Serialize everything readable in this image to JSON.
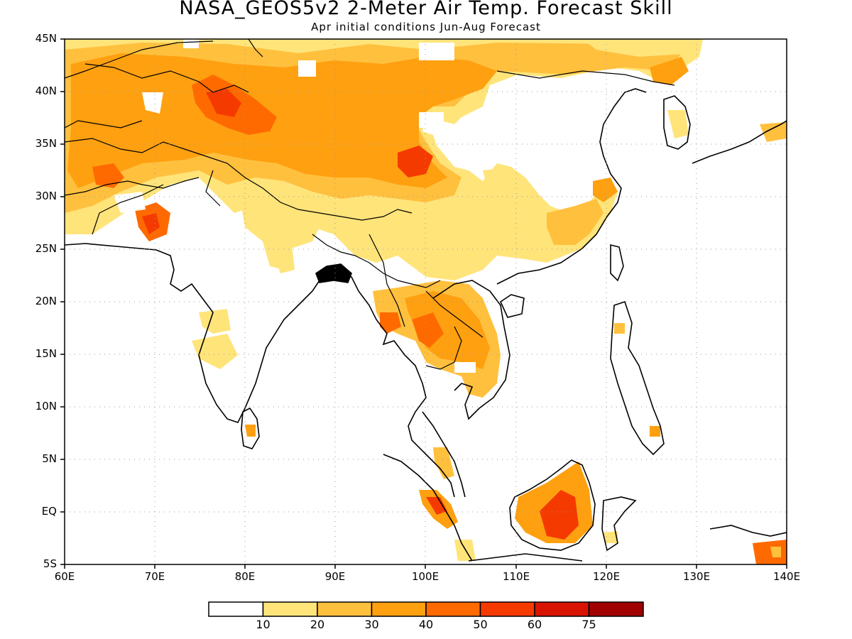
{
  "title": "NASA_GEOS5v2 2-Meter Air Temp. Forecast Skill",
  "subtitle": "Apr initial conditions  Jun-Aug Forecast",
  "map": {
    "lon_range": [
      60,
      140
    ],
    "lat_range": [
      -5,
      45
    ],
    "lat_labels": [
      "45N",
      "40N",
      "35N",
      "30N",
      "25N",
      "20N",
      "15N",
      "10N",
      "5N",
      "EQ",
      "5S"
    ],
    "lon_labels": [
      "60E",
      "70E",
      "80E",
      "90E",
      "100E",
      "110E",
      "120E",
      "130E",
      "140E"
    ]
  },
  "colorbar": {
    "colors": [
      "#ffffff",
      "#ffe47a",
      "#ffc03e",
      "#ffa010",
      "#ff6a00",
      "#f53a00",
      "#d81400",
      "#a00000"
    ],
    "labels": [
      "10",
      "20",
      "30",
      "40",
      "50",
      "60",
      "75"
    ]
  }
}
